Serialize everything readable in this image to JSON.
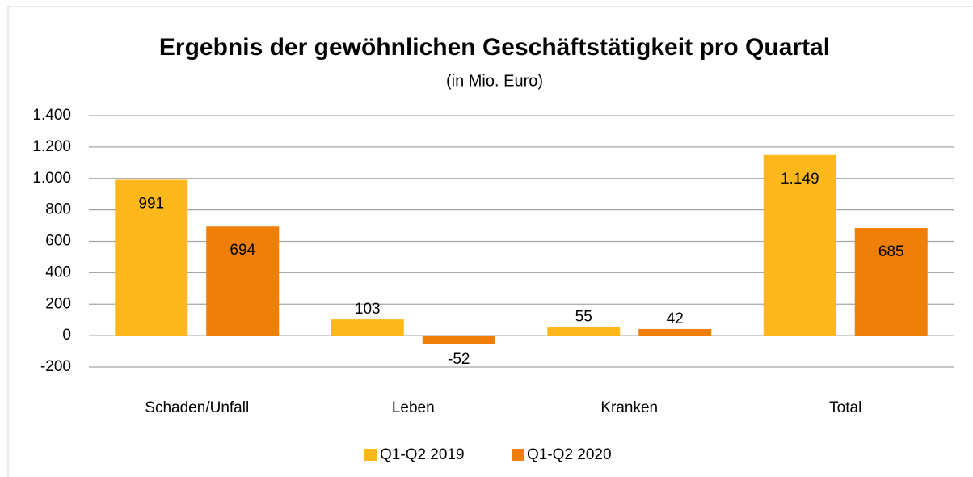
{
  "chart_data": {
    "type": "bar",
    "title": "Ergebnis der gewöhnlichen Geschäftstätigkeit pro Quartal",
    "subtitle": "(in Mio. Euro)",
    "categories": [
      "Schaden/Unfall",
      "Leben",
      "Kranken",
      "Total"
    ],
    "series": [
      {
        "name": "Q1-Q2 2019",
        "color": "#ffb81c",
        "values": [
          991,
          103,
          55,
          1149
        ],
        "value_labels": [
          "991",
          "103",
          "55",
          "1.149"
        ]
      },
      {
        "name": "Q1-Q2 2020",
        "color": "#f07f09",
        "values": [
          694,
          -52,
          42,
          685
        ]
      }
    ],
    "ylim": [
      -200,
      1400
    ],
    "yticks": [
      -200,
      0,
      200,
      400,
      600,
      800,
      {
        "value": 1000,
        "label": "1.000"
      },
      {
        "value": 1200,
        "label": "1.200"
      },
      {
        "value": 1400,
        "label": "1.400"
      }
    ],
    "grid": true,
    "legend": "bottom"
  }
}
